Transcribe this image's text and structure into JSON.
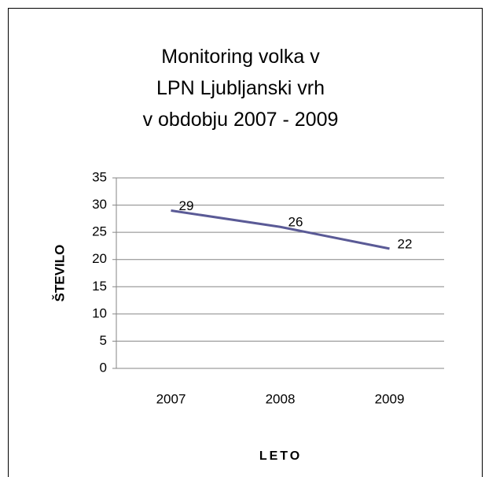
{
  "chart_data": {
    "type": "line",
    "title": "Monitoring volka v\nLPN Ljubljanski vrh\nv obdobju 2007 - 2009",
    "x_label": "LETO",
    "y_label": "ŠTEVILO",
    "categories": [
      "2007",
      "2008",
      "2009"
    ],
    "series": [
      {
        "name": "Število",
        "color": "#5a5a96",
        "values": [
          29,
          26,
          22
        ]
      }
    ],
    "ylim": [
      0,
      35
    ],
    "yticks": [
      0,
      5,
      10,
      15,
      20,
      25,
      30,
      35
    ],
    "grid": true,
    "legend": false
  }
}
